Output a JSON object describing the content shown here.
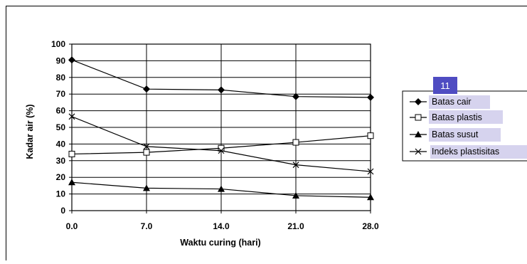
{
  "chart_data": {
    "type": "line",
    "x": [
      0.0,
      7.0,
      14.0,
      21.0,
      28.0
    ],
    "xticks": [
      "0.0",
      "7.0",
      "14.0",
      "21.0",
      "28.0"
    ],
    "yticks": [
      "0",
      "10",
      "20",
      "30",
      "40",
      "50",
      "60",
      "70",
      "80",
      "90",
      "100"
    ],
    "xlim": [
      0,
      28
    ],
    "ylim": [
      0,
      100
    ],
    "xlabel": "Waktu curing (hari)",
    "ylabel": "Kadar air (%)",
    "grid": true,
    "legend_position": "right",
    "series": [
      {
        "name": "Batas cair",
        "marker": "diamond",
        "values": [
          90.5,
          73,
          72.5,
          68.5,
          68
        ]
      },
      {
        "name": "Batas plastis",
        "marker": "square",
        "values": [
          34,
          35,
          37.5,
          41,
          45
        ]
      },
      {
        "name": "Batas susut",
        "marker": "triangle",
        "values": [
          17,
          13.5,
          13,
          9,
          8
        ]
      },
      {
        "name": "Indeks plastisitas",
        "marker": "x",
        "values": [
          56.5,
          38.5,
          36,
          27.5,
          23.5
        ]
      }
    ]
  },
  "annotation_badge": "11"
}
